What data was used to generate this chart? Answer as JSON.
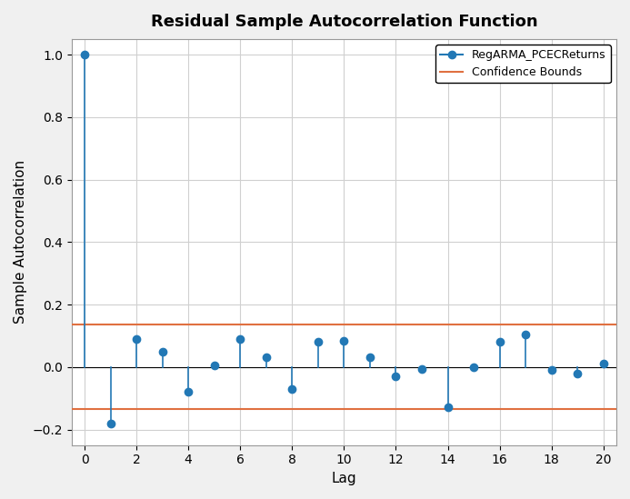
{
  "title": "Residual Sample Autocorrelation Function",
  "xlabel": "Lag",
  "ylabel": "Sample Autocorrelation",
  "lags": [
    0,
    1,
    2,
    3,
    4,
    5,
    6,
    7,
    8,
    9,
    10,
    11,
    12,
    13,
    14,
    15,
    16,
    17,
    18,
    19,
    20
  ],
  "acf_values": [
    1.0,
    -0.18,
    0.09,
    0.05,
    -0.08,
    0.005,
    0.09,
    0.03,
    -0.07,
    0.08,
    0.085,
    0.03,
    -0.03,
    -0.005,
    -0.13,
    0.0,
    0.08,
    0.105,
    -0.01,
    -0.02,
    0.01
  ],
  "confidence_bound": 0.135,
  "line_color": "#2278b5",
  "marker_color": "#2278b5",
  "confidence_color": "#e07040",
  "background_color": "#f0f0f0",
  "axes_background": "#ffffff",
  "ylim": [
    -0.25,
    1.05
  ],
  "xlim": [
    -0.5,
    20.5
  ],
  "yticks": [
    -0.2,
    0.0,
    0.2,
    0.4,
    0.6,
    0.8,
    1.0
  ],
  "xticks": [
    0,
    2,
    4,
    6,
    8,
    10,
    12,
    14,
    16,
    18,
    20
  ],
  "grid_color": "#d0d0d0",
  "title_fontsize": 13,
  "label_fontsize": 11,
  "tick_fontsize": 10,
  "legend_label_series": "RegARMA_PCECReturns",
  "legend_label_conf": "Confidence Bounds"
}
